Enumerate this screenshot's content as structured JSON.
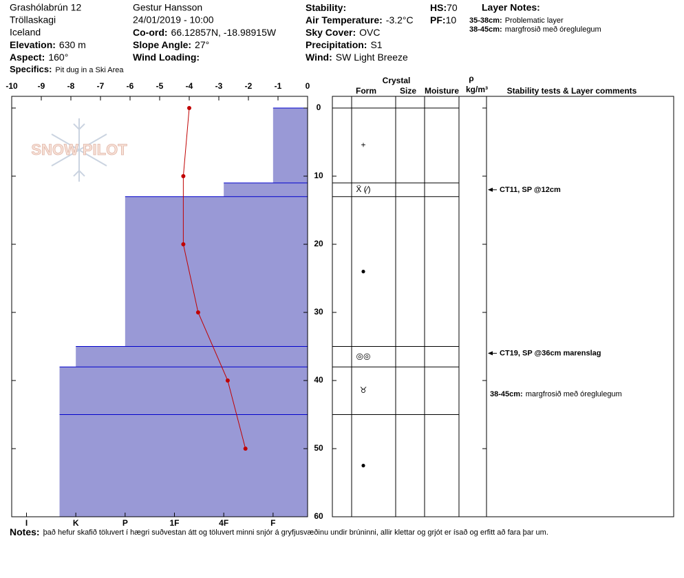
{
  "header": {
    "site": "Grashólabrún 12",
    "range": "Tröllaskagi",
    "country": "Iceland",
    "observer": "Gestur Hansson",
    "datetime": "24/01/2019 - 10:00",
    "fields": [
      {
        "label": "Elevation:",
        "value": "630 m"
      },
      {
        "label": "Aspect:",
        "value": "160°"
      },
      {
        "label": "Specifics:",
        "value": "Pit dug in a Ski Area"
      },
      {
        "label": "Co-ord:",
        "value": "66.12857N, -18.98915W"
      },
      {
        "label": "Slope Angle:",
        "value": "27°"
      },
      {
        "label": "Wind Loading:"
      },
      {
        "label": "Stability:"
      },
      {
        "label": "Air Temperature:",
        "value": "-3.2°C"
      },
      {
        "label": "Sky Cover:",
        "value": "OVC"
      },
      {
        "label": "Precipitation:",
        "value": "S1"
      },
      {
        "label": "Wind:",
        "value": "SW Light Breeze"
      },
      {
        "label": "HS:",
        "value": "70"
      },
      {
        "label": "PF:",
        "value": "10"
      }
    ],
    "layer_notes_title": "Layer Notes:",
    "layer_notes": [
      {
        "range": "35-38cm:",
        "text": "Problematic layer"
      },
      {
        "range": "38-45cm:",
        "text": "margfrosið með óreglulegum"
      }
    ]
  },
  "logo": "SNOW PILOT",
  "chart_data": [
    {
      "type": "bar",
      "depth_top": [
        0,
        11,
        13,
        35,
        38,
        45
      ],
      "depth_bottom": [
        11,
        13,
        35,
        38,
        45,
        60
      ],
      "values": [
        1,
        2,
        4,
        5,
        5.33,
        5.33
      ],
      "xlim": [
        6.3,
        0.3
      ],
      "xticks": [
        {
          "value": 6,
          "label": "I"
        },
        {
          "value": 5,
          "label": "K"
        },
        {
          "value": 4,
          "label": "P"
        },
        {
          "value": 3,
          "label": "1F"
        },
        {
          "value": 2,
          "label": "4F"
        },
        {
          "value": 1,
          "label": "F"
        }
      ],
      "ylim": [
        0,
        60
      ],
      "yticks": [
        0,
        10,
        20,
        30,
        40,
        50,
        60
      ],
      "color": "#9999d6",
      "edge_color": "#0000cc"
    },
    {
      "type": "line",
      "depths": [
        0,
        10,
        20,
        30,
        40,
        50
      ],
      "values": [
        -4.0,
        -4.2,
        -4.2,
        -3.7,
        -2.7,
        -2.1
      ],
      "xlim": [
        -10,
        0
      ],
      "xticks": [
        -10,
        -9,
        -8,
        -7,
        -6,
        -5,
        -4,
        -3,
        -2,
        -1,
        0
      ],
      "color": "#c00000"
    }
  ],
  "profile": {
    "headers": {
      "crystal": "Crystal",
      "form": "Form",
      "size": "Size",
      "moisture": "Moisture",
      "rho": "ρ",
      "density_unit": "kg/m³",
      "comments": "Stability tests & Layer comments"
    },
    "forms": [
      "+",
      "Ẍ (⁄)",
      "●",
      "◎◎",
      "♉︎",
      "●"
    ],
    "comments": [
      {
        "text": "CT11, SP @12cm",
        "depth": 12
      },
      {
        "text": "CT19, SP @36cm  marenslag",
        "depth": 36
      },
      {
        "range": "38-45cm:",
        "text": "margfrosið með óreglulegum",
        "depth": 42
      }
    ]
  },
  "notes": {
    "label": "Notes:",
    "text": "það hefur skafið töluvert í hægri suðvestan átt og töluvert minni snjór á gryfjusvæðinu undir brúninni, allir klettar og grjót er ísað og erfitt að fara þar um."
  }
}
